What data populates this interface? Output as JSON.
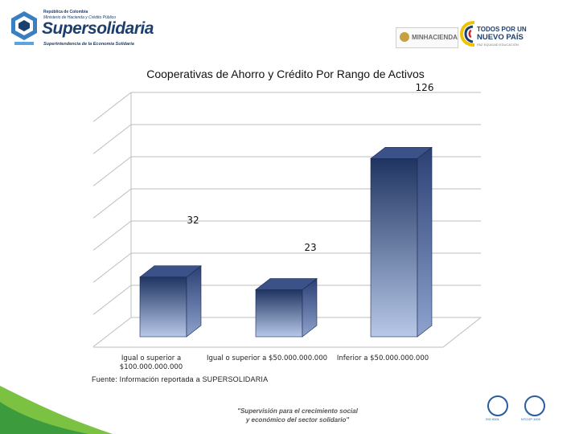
{
  "header": {
    "org_small_1": "República de Colombia",
    "org_small_2": "Ministerio de Hacienda y Crédito Público",
    "brand": "Supersolidaria",
    "brand_tagline": "Superintendencia de la Economía Solidaria",
    "ministry_label": "MINHACIENDA",
    "gov_line1": "TODOS POR UN",
    "gov_line2": "NUEVO PAÍS",
    "gov_line3": "PAZ EQUIDAD EDUCACIÓN"
  },
  "chart_data": {
    "type": "bar",
    "title": "Cooperativas de Ahorro y Crédito Por Rango de Activos",
    "categories": [
      [
        "Igual o superior a",
        "$100.000.000.000"
      ],
      [
        "Igual o superior a $50.000.000.000"
      ],
      [
        "Inferior a $50.000.000.000"
      ]
    ],
    "values": [
      32,
      23,
      126
    ],
    "data_labels": [
      "32",
      "23",
      "126"
    ],
    "ylim": [
      0,
      140
    ],
    "grid": true,
    "bar_color_top": "#1f3461",
    "bar_color_bottom": "#b7c8e8"
  },
  "source": "Fuente: Información reportada a SUPERSOLIDARIA",
  "footer": {
    "quote_line1": "\"Supervisión para el crecimiento social",
    "quote_line2": "y económico del sector solidario\"",
    "cert1_label": "ISO 9001",
    "cert2_label": "NTCGP 1000"
  }
}
